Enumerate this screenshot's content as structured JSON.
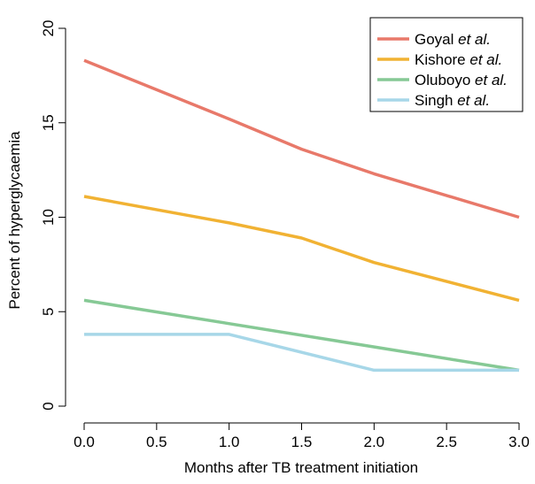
{
  "chart_data": {
    "type": "line",
    "title": "",
    "xlabel": "Months after TB treatment initiation",
    "ylabel": "Percent of hyperglycaemia",
    "xlim": [
      -0.1,
      3.1
    ],
    "ylim": [
      -0.3,
      20.5
    ],
    "xticks": [
      0.0,
      0.5,
      1.0,
      1.5,
      2.0,
      2.5,
      3.0
    ],
    "xtick_labels": [
      "0.0",
      "0.5",
      "1.0",
      "1.5",
      "2.0",
      "2.5",
      "3.0"
    ],
    "yticks": [
      0,
      5,
      10,
      15,
      20
    ],
    "ytick_labels": [
      "0",
      "5",
      "10",
      "15",
      "20"
    ],
    "legend_position": "top-right",
    "grid": false,
    "series": [
      {
        "name": "Goyal",
        "name_suffix": "et al.",
        "color": "#E8796A",
        "x": [
          0,
          1.0,
          1.5,
          2.0,
          3.0
        ],
        "y": [
          18.3,
          15.2,
          13.6,
          12.3,
          10.0
        ]
      },
      {
        "name": "Kishore",
        "name_suffix": "et al.",
        "color": "#F1B233",
        "x": [
          0,
          1.0,
          1.5,
          2.0,
          3.0
        ],
        "y": [
          11.1,
          9.7,
          8.9,
          7.6,
          5.6
        ]
      },
      {
        "name": "Oluboyo",
        "name_suffix": "et al.",
        "color": "#86C995",
        "x": [
          0,
          3.0
        ],
        "y": [
          5.6,
          1.9
        ]
      },
      {
        "name": "Singh",
        "name_suffix": "et al.",
        "color": "#A7D7E8",
        "x": [
          0,
          1.0,
          2.0,
          3.0
        ],
        "y": [
          3.8,
          3.8,
          1.9,
          1.9
        ]
      }
    ]
  }
}
